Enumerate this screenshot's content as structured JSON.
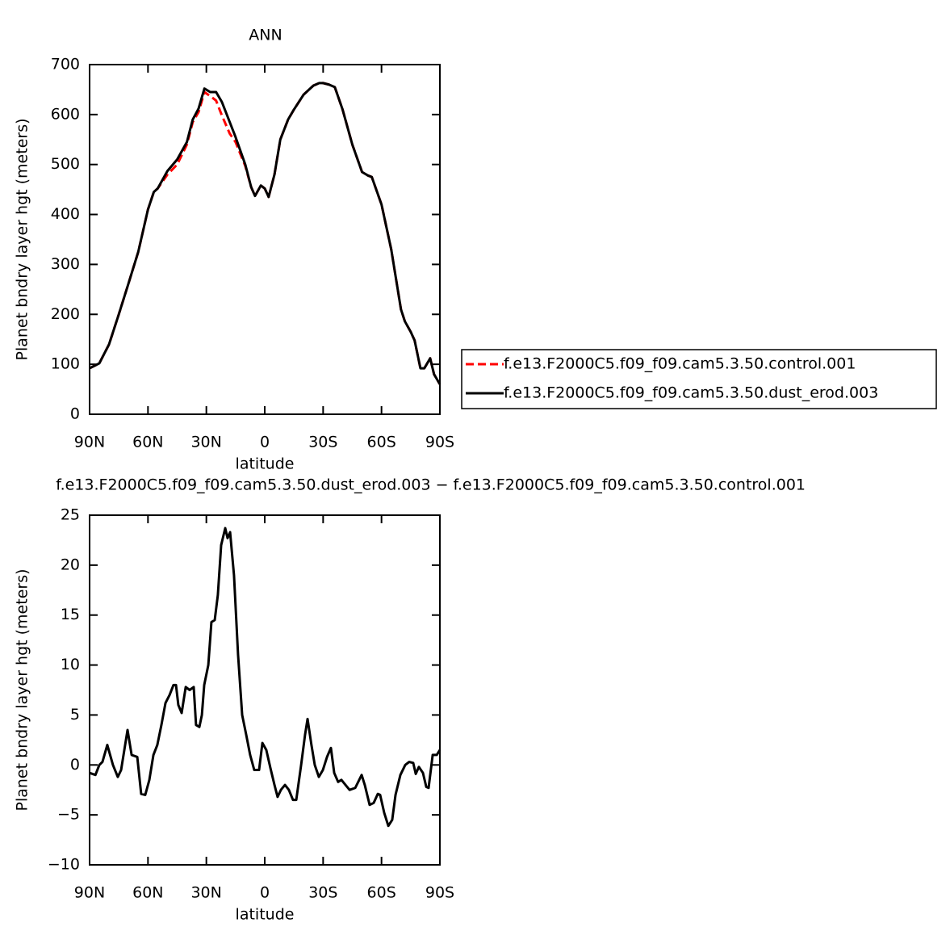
{
  "chart_data": [
    {
      "type": "line",
      "title": "ANN",
      "xlabel": "latitude",
      "ylabel": "Planet bndry layer hgt (meters)",
      "xlim": [
        90,
        -90
      ],
      "xticks": [
        {
          "value": 90,
          "label": "90N"
        },
        {
          "value": 60,
          "label": "60N"
        },
        {
          "value": 30,
          "label": "30N"
        },
        0,
        {
          "value": -30,
          "label": "30S"
        },
        {
          "value": -60,
          "label": "60S"
        },
        {
          "value": -90,
          "label": "90S"
        }
      ],
      "ylim": [
        0,
        700
      ],
      "yticks": [
        0,
        100,
        200,
        300,
        400,
        500,
        600,
        700
      ],
      "legend": "right",
      "x": [
        90,
        85,
        80,
        75,
        70,
        65,
        60,
        57,
        55,
        50,
        45,
        40,
        37,
        34,
        31,
        28,
        25,
        22,
        18,
        15,
        10,
        7,
        5,
        2,
        0,
        -2,
        -5,
        -8,
        -12,
        -15,
        -20,
        -25,
        -28,
        -30,
        -33,
        -36,
        -40,
        -45,
        -50,
        -53,
        -55,
        -60,
        -65,
        -70,
        -72,
        -75,
        -77,
        -80,
        -82,
        -85,
        -87,
        -90
      ],
      "series": [
        {
          "name": "f.e13.F2000C5.f09_f09.cam5.3.50.control.001",
          "color": "#ff0000",
          "line_style": "dashed",
          "values": [
            92,
            102,
            140,
            200,
            262,
            325,
            410,
            445,
            452,
            480,
            500,
            540,
            585,
            605,
            645,
            637,
            628,
            598,
            562,
            545,
            497,
            455,
            437,
            458,
            452,
            435,
            480,
            550,
            590,
            610,
            640,
            658,
            663,
            663,
            660,
            655,
            610,
            540,
            485,
            478,
            475,
            420,
            330,
            210,
            186,
            165,
            148,
            92,
            92,
            112,
            80,
            60
          ]
        },
        {
          "name": "f.e13.F2000C5.f09_f09.cam5.3.50.dust_erod.003",
          "color": "#000000",
          "line_style": "solid",
          "values": [
            92,
            102,
            140,
            200,
            262,
            325,
            410,
            445,
            452,
            487,
            510,
            545,
            590,
            612,
            652,
            645,
            645,
            625,
            585,
            555,
            500,
            455,
            437,
            458,
            452,
            435,
            480,
            550,
            590,
            610,
            640,
            658,
            663,
            663,
            660,
            655,
            610,
            540,
            485,
            478,
            475,
            420,
            330,
            210,
            186,
            165,
            148,
            92,
            92,
            112,
            80,
            60
          ]
        }
      ]
    },
    {
      "type": "line",
      "title": "f.e13.F2000C5.f09_f09.cam5.3.50.dust_erod.003 − f.e13.F2000C5.f09_f09.cam5.3.50.control.001",
      "xlabel": "latitude",
      "ylabel": "Planet bndry layer hgt (meters)",
      "xlim": [
        90,
        -90
      ],
      "xticks": [
        {
          "value": 90,
          "label": "90N"
        },
        {
          "value": 60,
          "label": "60N"
        },
        {
          "value": 30,
          "label": "30N"
        },
        0,
        {
          "value": -30,
          "label": "30S"
        },
        {
          "value": -60,
          "label": "60S"
        },
        {
          "value": -90,
          "label": "90S"
        }
      ],
      "ylim": [
        -10,
        25
      ],
      "yticks": [
        {
          "value": -10,
          "label": "−10"
        },
        {
          "value": -5,
          "label": "−5"
        },
        0,
        5,
        10,
        15,
        20,
        25
      ],
      "color": "#000000",
      "x": [
        90,
        87,
        85,
        83.4,
        80.9,
        78,
        75.5,
        73.8,
        70.5,
        68.4,
        65.5,
        63.5,
        61.4,
        59.3,
        57.2,
        55.2,
        53.1,
        51,
        48.9,
        46.9,
        45.6,
        44.4,
        42.7,
        40.6,
        38.6,
        36.5,
        35.3,
        33.6,
        32.3,
        31.1,
        29,
        27.4,
        25.7,
        24.1,
        22.4,
        20.3,
        19.1,
        17.8,
        15.8,
        13.7,
        11.6,
        9.5,
        7.5,
        5.4,
        2.9,
        1.2,
        -0.8,
        -2.9,
        -5,
        -6.6,
        -8.3,
        -10.4,
        -12.4,
        -14.5,
        -16.2,
        -18.7,
        -20.7,
        -22,
        -24,
        -25.7,
        -27.8,
        -29.9,
        -32,
        -34,
        -35.7,
        -37.7,
        -39.4,
        -41.5,
        -43.6,
        -46.5,
        -49.8,
        -51.4,
        -53.9,
        -56,
        -58.1,
        -59.3,
        -61.4,
        -63.5,
        -65.5,
        -67.2,
        -69.7,
        -72.2,
        -74.2,
        -76.3,
        -77.6,
        -79.2,
        -81.3,
        -83,
        -84.2,
        -86.3,
        -88.4,
        -90
      ],
      "values": [
        -0.8,
        -1,
        0,
        0.3,
        2,
        0,
        -1.2,
        -0.5,
        3.5,
        1,
        0.8,
        -2.9,
        -3,
        -1.5,
        1,
        2,
        4,
        6.2,
        7,
        8,
        8,
        6,
        5.2,
        7.8,
        7.5,
        7.8,
        4,
        3.8,
        5,
        8,
        10,
        14.3,
        14.5,
        17,
        22,
        23.7,
        22.7,
        23.3,
        19,
        11,
        5,
        3,
        1,
        -0.5,
        -0.5,
        2.2,
        1.5,
        -0.3,
        -2,
        -3.2,
        -2.5,
        -2,
        -2.5,
        -3.5,
        -3.5,
        0,
        3,
        4.6,
        2,
        0,
        -1.2,
        -0.5,
        0.8,
        1.7,
        -0.8,
        -1.7,
        -1.5,
        -2,
        -2.5,
        -2.3,
        -1,
        -2,
        -4,
        -3.8,
        -2.9,
        -3,
        -4.8,
        -6.1,
        -5.5,
        -3,
        -1,
        0,
        0.3,
        0.2,
        -0.9,
        -0.2,
        -0.8,
        -2.2,
        -2.3,
        1,
        1,
        1.5
      ]
    }
  ]
}
